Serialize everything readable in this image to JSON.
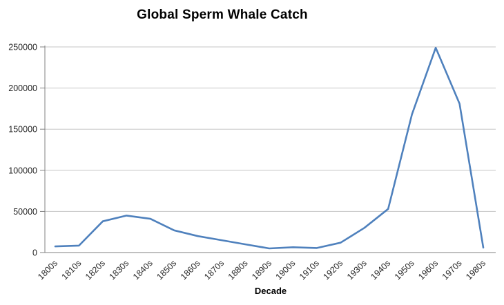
{
  "chart": {
    "title": "Global Sperm Whale Catch",
    "x_axis_label": "Decade"
  },
  "chart_data": {
    "type": "line",
    "title": "Global Sperm Whale Catch",
    "xlabel": "Decade",
    "ylabel": "",
    "categories": [
      "1800s",
      "1810s",
      "1820s",
      "1830s",
      "1840s",
      "1850s",
      "1860s",
      "1870s",
      "1880s",
      "1890s",
      "1900s",
      "1910s",
      "1920s",
      "1930s",
      "1940s",
      "1950s",
      "1960s",
      "1970s",
      "1980s"
    ],
    "values": [
      7500,
      8500,
      38000,
      45000,
      41000,
      27000,
      20000,
      15000,
      10000,
      5000,
      6500,
      5500,
      12000,
      30000,
      53000,
      168000,
      249000,
      181000,
      6000
    ],
    "ylim": [
      0,
      250000
    ],
    "y_ticks": [
      0,
      50000,
      100000,
      150000,
      200000,
      250000
    ],
    "grid": "horizontal",
    "legend": "none",
    "line_color": "#4F81BD",
    "gridline_color": "#C6C6C6",
    "axis_color": "#808080",
    "label_color": "#262626"
  }
}
